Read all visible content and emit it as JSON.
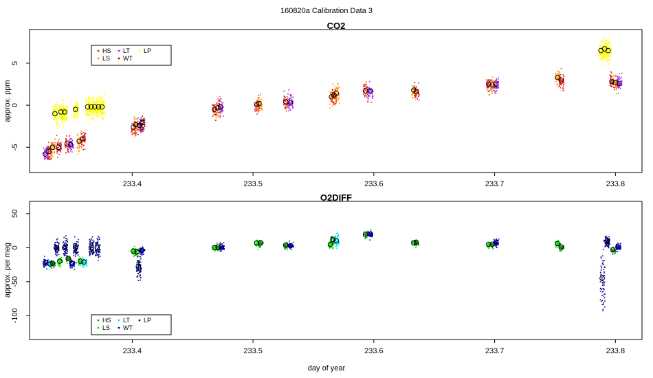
{
  "figure": {
    "title": "160820a   Calibration Data 3",
    "xlabel": "day of year"
  },
  "colors": {
    "HS": "#e41a1c",
    "LS": "#ff8c00",
    "LT": "#a020f0",
    "WT": "#8b0000",
    "LP": "#ffff00",
    "O2_HS": "#1e8b1e",
    "O2_LS": "#00ee00",
    "O2_LT": "#00e5ee",
    "O2_WT": "#0000cd",
    "O2_LP": "#000080"
  },
  "chart_data": [
    {
      "type": "scatter",
      "title": "CO2",
      "xlabel": "",
      "ylabel": "approx. ppm",
      "xlim": [
        233.315,
        233.822
      ],
      "ylim": [
        -8,
        9
      ],
      "xticks": [
        233.4,
        233.5,
        233.6,
        233.7,
        233.8
      ],
      "xtick_labels": [
        "233.4",
        "233.5",
        "233.6",
        "233.7",
        "233.8"
      ],
      "yticks": [
        -5,
        0,
        5
      ],
      "ytick_labels": [
        "-5",
        "0",
        "5"
      ],
      "legend": {
        "position": "top-left",
        "entries": [
          "HS",
          "LS",
          "LT",
          "WT",
          "LP"
        ]
      },
      "clusters": [
        {
          "series": "LT",
          "x": 233.328,
          "y": -5.8,
          "spread": 0.8
        },
        {
          "series": "HS",
          "x": 233.331,
          "y": -5.5,
          "spread": 0.8
        },
        {
          "series": "LS",
          "x": 233.334,
          "y": -5.0,
          "spread": 0.8
        },
        {
          "series": "LP",
          "x": 233.336,
          "y": -1.0,
          "spread": 1.0
        },
        {
          "series": "HS",
          "x": 233.339,
          "y": -5.0,
          "spread": 0.7
        },
        {
          "series": "LP",
          "x": 233.341,
          "y": -0.8,
          "spread": 1.0
        },
        {
          "series": "LP",
          "x": 233.344,
          "y": -0.8,
          "spread": 1.0
        },
        {
          "series": "HS",
          "x": 233.346,
          "y": -4.6,
          "spread": 0.7
        },
        {
          "series": "LT",
          "x": 233.349,
          "y": -4.7,
          "spread": 0.7
        },
        {
          "series": "LP",
          "x": 233.353,
          "y": -0.5,
          "spread": 1.0
        },
        {
          "series": "LS",
          "x": 233.356,
          "y": -4.3,
          "spread": 0.8
        },
        {
          "series": "HS",
          "x": 233.359,
          "y": -4.0,
          "spread": 0.8
        },
        {
          "series": "LP",
          "x": 233.363,
          "y": -0.2,
          "spread": 1.0
        },
        {
          "series": "LP",
          "x": 233.366,
          "y": -0.2,
          "spread": 1.0
        },
        {
          "series": "LP",
          "x": 233.369,
          "y": -0.2,
          "spread": 1.0
        },
        {
          "series": "LP",
          "x": 233.372,
          "y": -0.2,
          "spread": 1.0
        },
        {
          "series": "LP",
          "x": 233.375,
          "y": -0.2,
          "spread": 1.0
        },
        {
          "series": "HS",
          "x": 233.401,
          "y": -2.6,
          "spread": 0.9
        },
        {
          "series": "LS",
          "x": 233.403,
          "y": -2.3,
          "spread": 0.9
        },
        {
          "series": "LT",
          "x": 233.406,
          "y": -2.4,
          "spread": 0.8
        },
        {
          "series": "WT",
          "x": 233.408,
          "y": -2.1,
          "spread": 0.8
        },
        {
          "series": "HS",
          "x": 233.468,
          "y": -0.5,
          "spread": 0.9
        },
        {
          "series": "LS",
          "x": 233.471,
          "y": -0.3,
          "spread": 0.9
        },
        {
          "series": "LT",
          "x": 233.473,
          "y": -0.2,
          "spread": 0.8
        },
        {
          "series": "HS",
          "x": 233.503,
          "y": 0.1,
          "spread": 0.8
        },
        {
          "series": "LS",
          "x": 233.505,
          "y": 0.2,
          "spread": 0.8
        },
        {
          "series": "HS",
          "x": 233.527,
          "y": 0.4,
          "spread": 0.8
        },
        {
          "series": "LT",
          "x": 233.531,
          "y": 0.3,
          "spread": 0.8
        },
        {
          "series": "LS",
          "x": 233.565,
          "y": 1.0,
          "spread": 0.9
        },
        {
          "series": "HS",
          "x": 233.567,
          "y": 1.2,
          "spread": 0.9
        },
        {
          "series": "LS",
          "x": 233.569,
          "y": 1.4,
          "spread": 0.9
        },
        {
          "series": "HS",
          "x": 233.593,
          "y": 1.7,
          "spread": 0.8
        },
        {
          "series": "LT",
          "x": 233.597,
          "y": 1.7,
          "spread": 0.8
        },
        {
          "series": "LS",
          "x": 233.633,
          "y": 1.8,
          "spread": 0.8
        },
        {
          "series": "HS",
          "x": 233.635,
          "y": 1.6,
          "spread": 0.8
        },
        {
          "series": "HS",
          "x": 233.695,
          "y": 2.5,
          "spread": 0.8
        },
        {
          "series": "LS",
          "x": 233.698,
          "y": 2.4,
          "spread": 0.8
        },
        {
          "series": "LT",
          "x": 233.701,
          "y": 2.5,
          "spread": 0.8
        },
        {
          "series": "LS",
          "x": 233.752,
          "y": 3.3,
          "spread": 0.8
        },
        {
          "series": "HS",
          "x": 233.755,
          "y": 3.0,
          "spread": 0.8
        },
        {
          "series": "LP",
          "x": 233.788,
          "y": 6.5,
          "spread": 1.0
        },
        {
          "series": "LP",
          "x": 233.791,
          "y": 6.7,
          "spread": 1.0
        },
        {
          "series": "LP",
          "x": 233.794,
          "y": 6.5,
          "spread": 1.0
        },
        {
          "series": "HS",
          "x": 233.797,
          "y": 2.8,
          "spread": 0.8
        },
        {
          "series": "LS",
          "x": 233.8,
          "y": 2.7,
          "spread": 0.8
        },
        {
          "series": "LT",
          "x": 233.803,
          "y": 2.6,
          "spread": 0.8
        }
      ]
    },
    {
      "type": "scatter",
      "title": "O2DIFF",
      "xlabel": "day of year",
      "ylabel": "approx. per meg",
      "xlim": [
        233.315,
        233.822
      ],
      "ylim": [
        -135,
        68
      ],
      "xticks": [
        233.4,
        233.5,
        233.6,
        233.7,
        233.8
      ],
      "xtick_labels": [
        "233.4",
        "233.5",
        "233.6",
        "233.7",
        "233.8"
      ],
      "yticks": [
        -100,
        -50,
        0,
        50
      ],
      "ytick_labels": [
        "-100",
        "-50",
        "0",
        "50"
      ],
      "legend": {
        "position": "bottom-left",
        "entries": [
          "HS",
          "LS",
          "LT",
          "WT",
          "LP"
        ]
      },
      "clusters": [
        {
          "series": "O2_WT",
          "x": 233.328,
          "y": -22,
          "spread": 5
        },
        {
          "series": "O2_LT",
          "x": 233.332,
          "y": -24,
          "spread": 5
        },
        {
          "series": "O2_HS",
          "x": 233.334,
          "y": -23,
          "spread": 4
        },
        {
          "series": "O2_LP",
          "x": 233.337,
          "y": 0,
          "spread": 10
        },
        {
          "series": "O2_LS",
          "x": 233.34,
          "y": -20,
          "spread": 5
        },
        {
          "series": "O2_LP",
          "x": 233.344,
          "y": 0,
          "spread": 10
        },
        {
          "series": "O2_HS",
          "x": 233.347,
          "y": -16,
          "spread": 4
        },
        {
          "series": "O2_WT",
          "x": 233.35,
          "y": -23,
          "spread": 5
        },
        {
          "series": "O2_LP",
          "x": 233.353,
          "y": 0,
          "spread": 10
        },
        {
          "series": "O2_LS",
          "x": 233.357,
          "y": -20,
          "spread": 5
        },
        {
          "series": "O2_LT",
          "x": 233.36,
          "y": -21,
          "spread": 5
        },
        {
          "series": "O2_LP",
          "x": 233.366,
          "y": 0,
          "spread": 12
        },
        {
          "series": "O2_LP",
          "x": 233.371,
          "y": 0,
          "spread": 12
        },
        {
          "series": "O2_LS",
          "x": 233.401,
          "y": -5,
          "spread": 5
        },
        {
          "series": "O2_HS",
          "x": 233.404,
          "y": -6,
          "spread": 5
        },
        {
          "series": "O2_LP",
          "x": 233.405,
          "y": -28,
          "spread": 14
        },
        {
          "series": "O2_WT",
          "x": 233.408,
          "y": -4,
          "spread": 5
        },
        {
          "series": "O2_LS",
          "x": 233.468,
          "y": 0,
          "spread": 4
        },
        {
          "series": "O2_HS",
          "x": 233.471,
          "y": 1,
          "spread": 4
        },
        {
          "series": "O2_WT",
          "x": 233.474,
          "y": 1,
          "spread": 4
        },
        {
          "series": "O2_LS",
          "x": 233.503,
          "y": 7,
          "spread": 4
        },
        {
          "series": "O2_HS",
          "x": 233.506,
          "y": 7,
          "spread": 4
        },
        {
          "series": "O2_HS",
          "x": 233.527,
          "y": 4,
          "spread": 4
        },
        {
          "series": "O2_WT",
          "x": 233.531,
          "y": 3,
          "spread": 4
        },
        {
          "series": "O2_LS",
          "x": 233.564,
          "y": 5,
          "spread": 5
        },
        {
          "series": "O2_HS",
          "x": 233.566,
          "y": 12,
          "spread": 5
        },
        {
          "series": "O2_LT",
          "x": 233.569,
          "y": 10,
          "spread": 8
        },
        {
          "series": "O2_HS",
          "x": 233.593,
          "y": 20,
          "spread": 4
        },
        {
          "series": "O2_WT",
          "x": 233.597,
          "y": 20,
          "spread": 4
        },
        {
          "series": "O2_LS",
          "x": 233.633,
          "y": 7,
          "spread": 4
        },
        {
          "series": "O2_HS",
          "x": 233.635,
          "y": 8,
          "spread": 4
        },
        {
          "series": "O2_LS",
          "x": 233.695,
          "y": 5,
          "spread": 4
        },
        {
          "series": "O2_HS",
          "x": 233.698,
          "y": 5,
          "spread": 4
        },
        {
          "series": "O2_WT",
          "x": 233.701,
          "y": 8,
          "spread": 4
        },
        {
          "series": "O2_LS",
          "x": 233.752,
          "y": 6,
          "spread": 4
        },
        {
          "series": "O2_HS",
          "x": 233.755,
          "y": 1,
          "spread": 4
        },
        {
          "series": "O2_LP",
          "x": 233.789,
          "y": -45,
          "spread": 40
        },
        {
          "series": "O2_LP",
          "x": 233.793,
          "y": 10,
          "spread": 6
        },
        {
          "series": "O2_HS",
          "x": 233.798,
          "y": -3,
          "spread": 4
        },
        {
          "series": "O2_WT",
          "x": 233.802,
          "y": 1,
          "spread": 4
        }
      ]
    }
  ]
}
